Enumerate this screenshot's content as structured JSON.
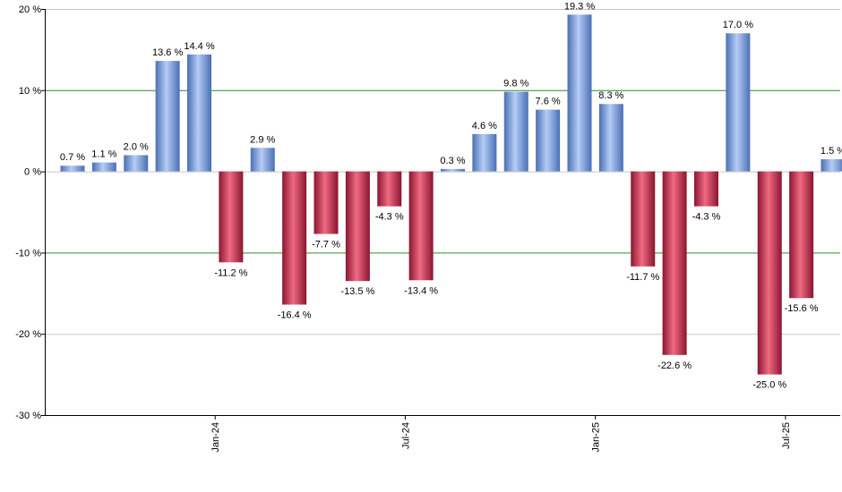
{
  "chart_data": {
    "type": "bar",
    "ylim": [
      -30,
      20
    ],
    "y_ticks": [
      20,
      10,
      0,
      -10,
      -20,
      -30
    ],
    "y_tick_labels": [
      "20 %",
      "10 %",
      "0 %",
      "-10 %",
      "-20 %",
      "-30 %"
    ],
    "x_ticks": [
      {
        "label": "Jan-24",
        "after_bar": 5
      },
      {
        "label": "Jul-24",
        "after_bar": 11
      },
      {
        "label": "Jan-25",
        "after_bar": 17
      },
      {
        "label": "Jul-25",
        "after_bar": 23
      }
    ],
    "values": [
      0.7,
      1.1,
      2.0,
      13.6,
      14.4,
      -11.2,
      2.9,
      -16.4,
      -7.7,
      -13.5,
      -4.3,
      -13.4,
      0.3,
      4.6,
      9.8,
      7.6,
      19.3,
      8.3,
      -11.7,
      -22.6,
      -4.3,
      17.0,
      -25.0,
      -15.6,
      1.5
    ],
    "value_labels": [
      "0.7 %",
      "1.1 %",
      "2.0 %",
      "13.6 %",
      "14.4 %",
      "-11.2 %",
      "2.9 %",
      "-16.4 %",
      "-7.7 %",
      "-13.5 %",
      "-4.3 %",
      "-13.4 %",
      "0.3 %",
      "4.6 %",
      "9.8 %",
      "7.6 %",
      "19.3 %",
      "8.3 %",
      "-11.7 %",
      "-22.6 %",
      "-4.3 %",
      "17.0 %",
      "-25.0 %",
      "-15.6 %",
      "1.5 %"
    ],
    "highlight_lines": [
      10,
      -10
    ],
    "colors": {
      "positive_light": "#b5cdf5",
      "positive_dark": "#4a6fb5",
      "negative_light": "#f06a82",
      "negative_dark": "#8a1530",
      "grid": "#c8c8c8",
      "highlight": "#2e8b2e",
      "axis": "#000000"
    }
  }
}
